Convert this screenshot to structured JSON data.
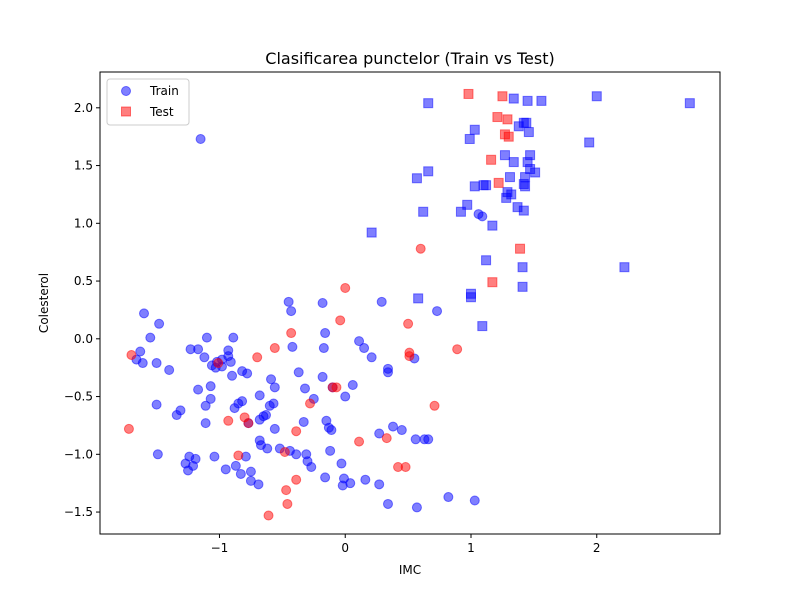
{
  "chart_data": {
    "type": "scatter",
    "title": "Clasificarea punctelor (Train vs Test)",
    "xlabel": "IMC",
    "ylabel": "Colesterol",
    "xlim": [
      -1.95,
      2.98
    ],
    "ylim": [
      -1.69,
      2.31
    ],
    "xticks": [
      -1,
      0,
      1,
      2
    ],
    "yticks": [
      -1.5,
      -1.0,
      -0.5,
      0.0,
      0.5,
      1.0,
      1.5,
      2.0
    ],
    "xtick_labels": [
      "−1",
      "0",
      "1",
      "2"
    ],
    "ytick_labels": [
      "−1.5",
      "−1.0",
      "−0.5",
      "0.0",
      "0.5",
      "1.0",
      "1.5",
      "2.0"
    ],
    "grid": false,
    "legend_position": "upper-left",
    "series": [
      {
        "name": "Train",
        "marker": "circle",
        "color": "#0000ff",
        "points": [
          [
            -1.6,
            0.22
          ],
          [
            -1.48,
            0.13
          ],
          [
            -1.55,
            0.01
          ],
          [
            -1.63,
            -0.11
          ],
          [
            -1.66,
            -0.18
          ],
          [
            -1.61,
            -0.21
          ],
          [
            -1.5,
            -0.21
          ],
          [
            -1.4,
            -0.27
          ],
          [
            -1.31,
            -0.62
          ],
          [
            -1.34,
            -0.66
          ],
          [
            -1.5,
            -0.57
          ],
          [
            -1.49,
            -1.0
          ],
          [
            -1.27,
            -1.08
          ],
          [
            -1.24,
            -1.02
          ],
          [
            -1.25,
            -1.14
          ],
          [
            -1.21,
            -1.1
          ],
          [
            -1.19,
            -1.04
          ],
          [
            -1.15,
            1.73
          ],
          [
            -1.23,
            -0.09
          ],
          [
            -1.17,
            -0.09
          ],
          [
            -1.1,
            0.01
          ],
          [
            -1.12,
            -0.16
          ],
          [
            -1.06,
            -0.23
          ],
          [
            -1.17,
            -0.44
          ],
          [
            -1.07,
            -0.41
          ],
          [
            -1.07,
            -0.52
          ],
          [
            -1.11,
            -0.58
          ],
          [
            -1.11,
            -0.73
          ],
          [
            -1.03,
            -0.25
          ],
          [
            -1.02,
            -0.2
          ],
          [
            -0.98,
            -0.18
          ],
          [
            -0.98,
            -0.24
          ],
          [
            -0.93,
            -0.1
          ],
          [
            -0.93,
            -0.15
          ],
          [
            -0.9,
            -0.32
          ],
          [
            -0.91,
            -0.2
          ],
          [
            -0.89,
            0.01
          ],
          [
            -0.88,
            -0.6
          ],
          [
            -0.85,
            -0.56
          ],
          [
            -0.82,
            -0.54
          ],
          [
            -0.82,
            -0.28
          ],
          [
            -0.78,
            -0.3
          ],
          [
            -0.77,
            -0.73
          ],
          [
            -0.87,
            -1.1
          ],
          [
            -0.83,
            -1.17
          ],
          [
            -0.79,
            -1.02
          ],
          [
            -0.75,
            -1.15
          ],
          [
            -0.75,
            -1.23
          ],
          [
            -0.69,
            -1.26
          ],
          [
            -0.95,
            -1.13
          ],
          [
            -1.04,
            -1.02
          ],
          [
            -0.68,
            -0.88
          ],
          [
            -0.67,
            -0.92
          ],
          [
            -0.62,
            -0.95
          ],
          [
            -0.68,
            -0.7
          ],
          [
            -0.63,
            -0.66
          ],
          [
            -0.65,
            -0.67
          ],
          [
            -0.6,
            -0.58
          ],
          [
            -0.57,
            -0.56
          ],
          [
            -0.56,
            -0.78
          ],
          [
            -0.56,
            -0.42
          ],
          [
            -0.59,
            -0.35
          ],
          [
            -0.68,
            -0.49
          ],
          [
            -0.52,
            -0.95
          ],
          [
            -0.44,
            -0.97
          ],
          [
            -0.39,
            -1.0
          ],
          [
            -0.31,
            -1.0
          ],
          [
            -0.3,
            -1.06
          ],
          [
            -0.27,
            -1.11
          ],
          [
            -0.16,
            -1.2
          ],
          [
            -0.12,
            -0.97
          ],
          [
            -0.03,
            -1.08
          ],
          [
            -0.02,
            -1.27
          ],
          [
            -0.01,
            -1.21
          ],
          [
            0.04,
            -1.25
          ],
          [
            0.16,
            -1.22
          ],
          [
            0.27,
            -1.26
          ],
          [
            0.34,
            -1.43
          ],
          [
            0.57,
            -1.46
          ],
          [
            0.82,
            -1.37
          ],
          [
            1.03,
            -1.4
          ],
          [
            -0.45,
            0.32
          ],
          [
            -0.43,
            0.24
          ],
          [
            -0.42,
            -0.07
          ],
          [
            -0.37,
            -0.29
          ],
          [
            -0.32,
            -0.43
          ],
          [
            -0.33,
            -0.72
          ],
          [
            -0.25,
            -0.52
          ],
          [
            -0.18,
            0.31
          ],
          [
            -0.16,
            0.05
          ],
          [
            -0.17,
            -0.08
          ],
          [
            -0.18,
            -0.33
          ],
          [
            -0.15,
            -0.71
          ],
          [
            -0.13,
            -0.77
          ],
          [
            -0.11,
            -0.79
          ],
          [
            -0.1,
            -0.42
          ],
          [
            0.0,
            -0.5
          ],
          [
            0.06,
            -0.4
          ],
          [
            0.11,
            -0.02
          ],
          [
            0.15,
            -0.08
          ],
          [
            0.21,
            -0.16
          ],
          [
            0.29,
            0.32
          ],
          [
            0.27,
            -0.82
          ],
          [
            0.34,
            -0.26
          ],
          [
            0.34,
            -0.29
          ],
          [
            0.38,
            -0.76
          ],
          [
            0.45,
            -0.79
          ],
          [
            0.55,
            -0.17
          ],
          [
            0.56,
            -0.87
          ],
          [
            0.63,
            -0.87
          ],
          [
            0.66,
            -0.87
          ],
          [
            0.73,
            0.24
          ],
          [
            1.06,
            1.08
          ],
          [
            1.09,
            1.06
          ]
        ]
      },
      {
        "name": "Train",
        "marker": "square",
        "color": "#0000ff",
        "points": [
          [
            0.66,
            2.04
          ],
          [
            0.99,
            1.73
          ],
          [
            1.03,
            1.81
          ],
          [
            1.34,
            2.08
          ],
          [
            1.45,
            2.06
          ],
          [
            1.56,
            2.06
          ],
          [
            2.0,
            2.1
          ],
          [
            2.74,
            2.04
          ],
          [
            1.27,
            1.59
          ],
          [
            1.34,
            1.53
          ],
          [
            1.38,
            1.84
          ],
          [
            1.42,
            1.87
          ],
          [
            1.44,
            1.87
          ],
          [
            1.46,
            1.79
          ],
          [
            1.47,
            1.59
          ],
          [
            1.45,
            1.53
          ],
          [
            1.47,
            1.47
          ],
          [
            1.51,
            1.44
          ],
          [
            1.43,
            1.4
          ],
          [
            1.42,
            1.34
          ],
          [
            1.43,
            1.32
          ],
          [
            1.32,
            1.25
          ],
          [
            1.29,
            1.27
          ],
          [
            1.28,
            1.22
          ],
          [
            1.31,
            1.4
          ],
          [
            1.37,
            1.14
          ],
          [
            1.42,
            1.11
          ],
          [
            1.94,
            1.7
          ],
          [
            0.57,
            1.39
          ],
          [
            0.66,
            1.45
          ],
          [
            1.03,
            1.32
          ],
          [
            1.1,
            1.33
          ],
          [
            1.12,
            1.33
          ],
          [
            0.62,
            1.1
          ],
          [
            0.92,
            1.1
          ],
          [
            0.97,
            1.16
          ],
          [
            1.17,
            0.98
          ],
          [
            0.21,
            0.92
          ],
          [
            1.12,
            0.68
          ],
          [
            1.41,
            0.62
          ],
          [
            2.22,
            0.62
          ],
          [
            1.0,
            0.39
          ],
          [
            1.0,
            0.36
          ],
          [
            0.58,
            0.35
          ],
          [
            1.41,
            0.45
          ],
          [
            1.09,
            0.11
          ]
        ]
      },
      {
        "name": "Test",
        "marker": "circle",
        "color": "#ff0000",
        "points": [
          [
            -1.7,
            -0.14
          ],
          [
            -1.72,
            -0.78
          ],
          [
            -1.01,
            -0.21
          ],
          [
            -0.93,
            -0.71
          ],
          [
            -0.85,
            -1.01
          ],
          [
            -0.8,
            -0.68
          ],
          [
            -0.77,
            -0.73
          ],
          [
            -0.7,
            -0.16
          ],
          [
            -0.56,
            -0.08
          ],
          [
            -0.48,
            -0.98
          ],
          [
            -0.47,
            -1.31
          ],
          [
            -0.46,
            -1.43
          ],
          [
            -0.43,
            0.05
          ],
          [
            -0.39,
            -0.8
          ],
          [
            -0.39,
            -1.22
          ],
          [
            -0.28,
            -0.56
          ],
          [
            -0.1,
            -0.42
          ],
          [
            -0.07,
            -0.42
          ],
          [
            -0.04,
            0.16
          ],
          [
            0.0,
            0.44
          ],
          [
            0.11,
            -0.89
          ],
          [
            0.33,
            -0.86
          ],
          [
            0.42,
            -1.11
          ],
          [
            0.48,
            -1.11
          ],
          [
            0.5,
            0.13
          ],
          [
            0.51,
            -0.12
          ],
          [
            0.51,
            -0.15
          ],
          [
            0.6,
            0.78
          ],
          [
            0.71,
            -0.58
          ],
          [
            0.89,
            -0.09
          ],
          [
            -0.61,
            -1.53
          ]
        ]
      },
      {
        "name": "Test",
        "marker": "square",
        "color": "#ff0000",
        "points": [
          [
            0.98,
            2.12
          ],
          [
            1.25,
            2.1
          ],
          [
            1.21,
            1.92
          ],
          [
            1.29,
            1.9
          ],
          [
            1.27,
            1.77
          ],
          [
            1.3,
            1.75
          ],
          [
            1.16,
            1.55
          ],
          [
            1.22,
            1.35
          ],
          [
            1.39,
            0.78
          ],
          [
            1.17,
            0.49
          ]
        ]
      }
    ],
    "legend": [
      {
        "label": "Train",
        "marker": "circle",
        "color": "#0000ff"
      },
      {
        "label": "Test",
        "marker": "square",
        "color": "#ff0000"
      }
    ]
  }
}
